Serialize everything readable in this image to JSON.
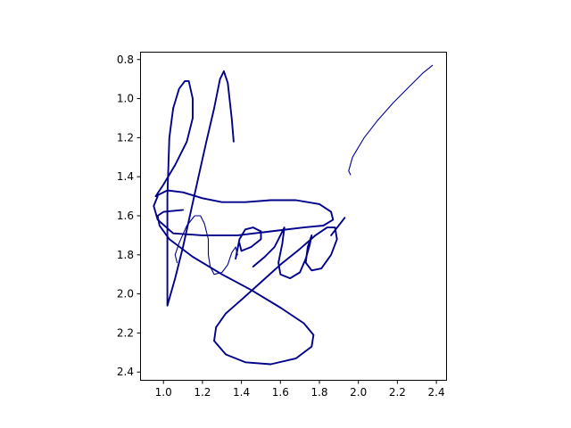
{
  "chart_data": {
    "type": "line",
    "title": "",
    "xlabel": "",
    "ylabel": "",
    "xlim": [
      0.88,
      2.45
    ],
    "ylim": [
      2.44,
      0.76
    ],
    "y_inverted": true,
    "grid": false,
    "xticks": [
      "1.0",
      "1.2",
      "1.4",
      "1.6",
      "1.8",
      "2.0",
      "2.2",
      "2.4"
    ],
    "yticks": [
      "0.8",
      "1.0",
      "1.2",
      "1.4",
      "1.6",
      "1.8",
      "2.0",
      "2.2",
      "2.4"
    ],
    "line_color": "#00008b",
    "series": [
      {
        "stroke": "thick",
        "points": [
          [
            1.36,
            1.22
          ],
          [
            1.35,
            1.1
          ],
          [
            1.33,
            0.92
          ],
          [
            1.31,
            0.86
          ],
          [
            1.29,
            0.9
          ],
          [
            1.26,
            1.05
          ],
          [
            1.22,
            1.22
          ],
          [
            1.18,
            1.4
          ],
          [
            1.14,
            1.58
          ],
          [
            1.1,
            1.76
          ],
          [
            1.06,
            1.92
          ],
          [
            1.02,
            2.06
          ],
          [
            1.02,
            1.8
          ],
          [
            1.02,
            1.5
          ],
          [
            1.03,
            1.2
          ],
          [
            1.05,
            1.05
          ],
          [
            1.08,
            0.95
          ],
          [
            1.11,
            0.91
          ],
          [
            1.13,
            0.91
          ],
          [
            1.15,
            1.0
          ],
          [
            1.15,
            1.1
          ],
          [
            1.12,
            1.22
          ],
          [
            1.06,
            1.34
          ],
          [
            1.0,
            1.44
          ],
          [
            0.96,
            1.5
          ],
          [
            0.98,
            1.49
          ],
          [
            1.02,
            1.47
          ],
          [
            1.1,
            1.48
          ],
          [
            1.2,
            1.51
          ],
          [
            1.3,
            1.53
          ],
          [
            1.42,
            1.53
          ],
          [
            1.55,
            1.52
          ],
          [
            1.68,
            1.52
          ],
          [
            1.8,
            1.54
          ],
          [
            1.86,
            1.58
          ],
          [
            1.87,
            1.62
          ],
          [
            1.82,
            1.65
          ],
          [
            1.72,
            1.66
          ],
          [
            1.55,
            1.68
          ],
          [
            1.38,
            1.7
          ],
          [
            1.2,
            1.7
          ],
          [
            1.05,
            1.69
          ],
          [
            0.97,
            1.62
          ],
          [
            0.95,
            1.55
          ],
          [
            0.97,
            1.5
          ]
        ]
      },
      {
        "stroke": "thin",
        "points": [
          [
            1.07,
            1.84
          ],
          [
            1.06,
            1.8
          ],
          [
            1.08,
            1.74
          ],
          [
            1.12,
            1.65
          ],
          [
            1.16,
            1.6
          ],
          [
            1.19,
            1.6
          ],
          [
            1.21,
            1.64
          ],
          [
            1.23,
            1.72
          ],
          [
            1.23,
            1.8
          ],
          [
            1.24,
            1.86
          ],
          [
            1.26,
            1.9
          ],
          [
            1.3,
            1.89
          ],
          [
            1.33,
            1.85
          ],
          [
            1.35,
            1.79
          ],
          [
            1.37,
            1.76
          ],
          [
            1.38,
            1.8
          ]
        ]
      },
      {
        "stroke": "thick",
        "points": [
          [
            1.37,
            1.82
          ],
          [
            1.39,
            1.72
          ],
          [
            1.42,
            1.67
          ],
          [
            1.46,
            1.66
          ],
          [
            1.5,
            1.68
          ],
          [
            1.5,
            1.72
          ],
          [
            1.45,
            1.76
          ],
          [
            1.4,
            1.78
          ],
          [
            1.39,
            1.74
          ]
        ]
      },
      {
        "stroke": "thick",
        "points": [
          [
            1.46,
            1.86
          ],
          [
            1.52,
            1.81
          ],
          [
            1.57,
            1.76
          ],
          [
            1.6,
            1.7
          ],
          [
            1.62,
            1.66
          ],
          [
            1.61,
            1.74
          ],
          [
            1.59,
            1.84
          ],
          [
            1.6,
            1.9
          ],
          [
            1.65,
            1.92
          ],
          [
            1.7,
            1.89
          ],
          [
            1.73,
            1.82
          ],
          [
            1.75,
            1.75
          ],
          [
            1.76,
            1.7
          ],
          [
            1.74,
            1.76
          ],
          [
            1.73,
            1.84
          ],
          [
            1.76,
            1.88
          ],
          [
            1.81,
            1.87
          ],
          [
            1.86,
            1.8
          ],
          [
            1.89,
            1.72
          ],
          [
            1.88,
            1.66
          ],
          [
            1.84,
            1.66
          ],
          [
            1.78,
            1.7
          ],
          [
            1.7,
            1.77
          ],
          [
            1.6,
            1.85
          ],
          [
            1.5,
            1.94
          ],
          [
            1.4,
            2.03
          ],
          [
            1.32,
            2.1
          ],
          [
            1.27,
            2.17
          ],
          [
            1.26,
            2.24
          ],
          [
            1.32,
            2.31
          ],
          [
            1.42,
            2.35
          ],
          [
            1.55,
            2.36
          ],
          [
            1.68,
            2.33
          ],
          [
            1.76,
            2.27
          ],
          [
            1.77,
            2.21
          ],
          [
            1.72,
            2.15
          ],
          [
            1.6,
            2.07
          ],
          [
            1.45,
            1.98
          ],
          [
            1.3,
            1.9
          ],
          [
            1.15,
            1.81
          ],
          [
            1.03,
            1.72
          ],
          [
            0.98,
            1.65
          ],
          [
            0.97,
            1.6
          ],
          [
            1.0,
            1.58
          ],
          [
            1.1,
            1.57
          ]
        ]
      },
      {
        "stroke": "thick",
        "points": [
          [
            1.86,
            1.7
          ],
          [
            1.93,
            1.61
          ]
        ]
      },
      {
        "stroke": "thin",
        "points": [
          [
            1.96,
            1.39
          ],
          [
            1.95,
            1.37
          ],
          [
            1.97,
            1.3
          ],
          [
            2.03,
            1.2
          ],
          [
            2.1,
            1.11
          ],
          [
            2.18,
            1.02
          ],
          [
            2.26,
            0.94
          ],
          [
            2.33,
            0.87
          ],
          [
            2.38,
            0.83
          ]
        ]
      }
    ]
  }
}
